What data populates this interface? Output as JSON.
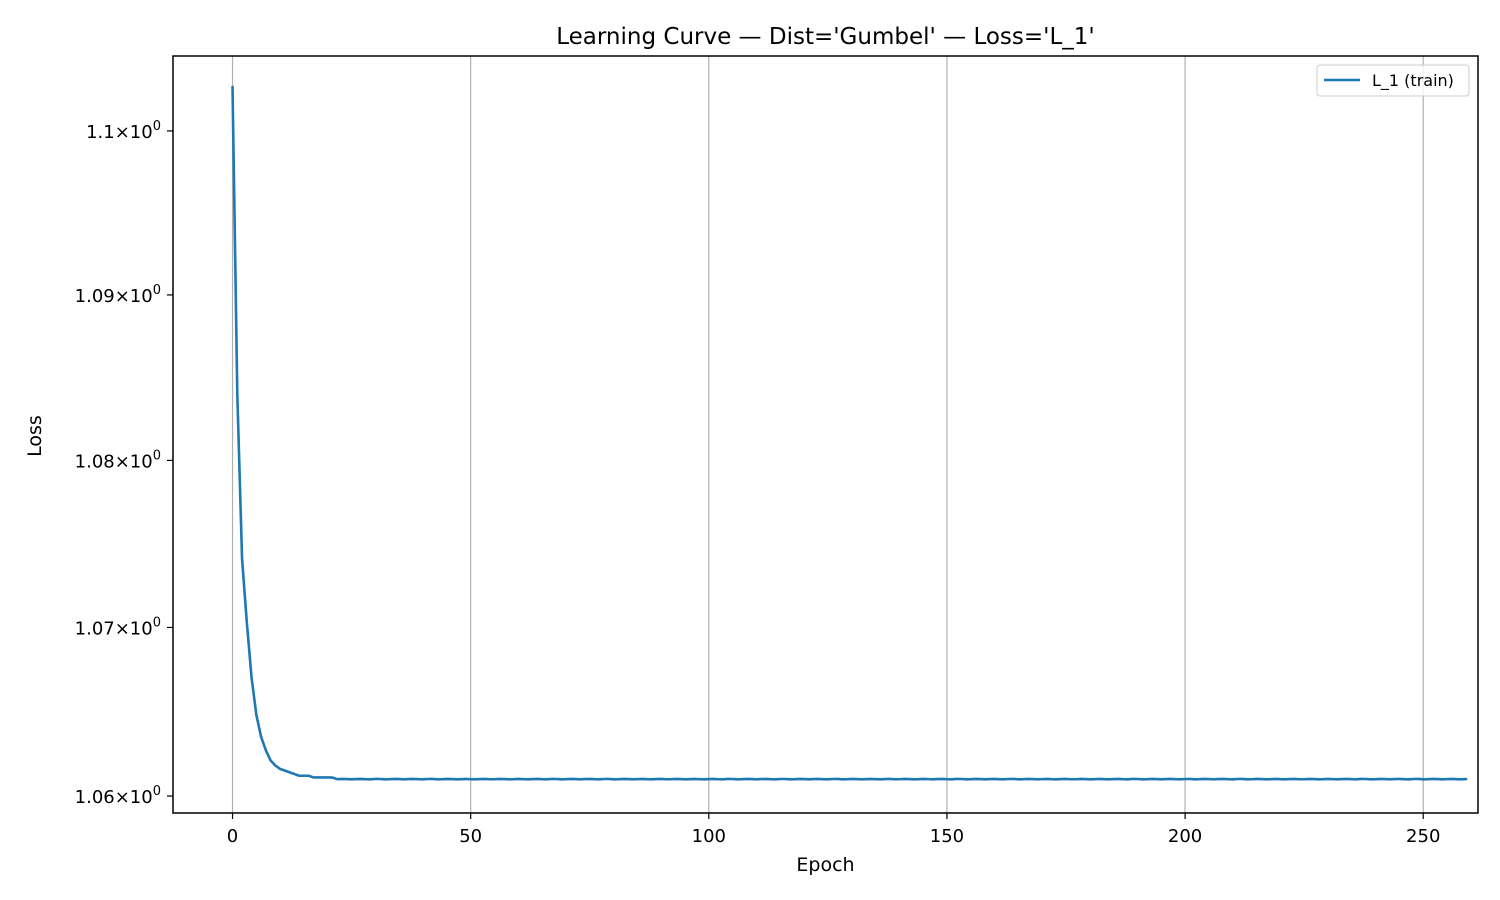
{
  "chart_data": {
    "type": "line",
    "title": "Learning Curve — Dist='Gumbel' — Loss='L_1'",
    "xlabel": "Epoch",
    "ylabel": "Loss",
    "xlim": [
      -12.5,
      261.5
    ],
    "ylim": [
      1.059,
      1.1046
    ],
    "y_scale": "log",
    "grid": "x-major",
    "legend_position": "upper right",
    "x_ticks": [
      0,
      50,
      100,
      150,
      200,
      250
    ],
    "x_tick_labels": [
      "0",
      "50",
      "100",
      "150",
      "200",
      "250"
    ],
    "y_ticks": [
      1.06,
      1.07,
      1.08,
      1.09,
      1.1
    ],
    "y_tick_mantissas": [
      "1.06",
      "1.07",
      "1.08",
      "1.09",
      "1.1"
    ],
    "y_tick_times": "×",
    "y_tick_base": "10",
    "y_tick_exponent": "0",
    "series": [
      {
        "name": "L_1 (train)",
        "color": "#1f77b4",
        "x_start": 0,
        "x_step": 1,
        "values": [
          1.1027,
          1.084,
          1.0741,
          1.0703,
          1.067,
          1.0648,
          1.0635,
          1.0627,
          1.0621,
          1.0618,
          1.0616,
          1.0615,
          1.0614,
          1.0613,
          1.0612,
          1.0612,
          1.0612,
          1.0611,
          1.0611,
          1.0611,
          1.0611,
          1.0611,
          1.061,
          1.061,
          1.061,
          1.061,
          1.061,
          1.061,
          1.061,
          1.061,
          1.061,
          1.061,
          1.061,
          1.061,
          1.061,
          1.061,
          1.061,
          1.061,
          1.061,
          1.061,
          1.061,
          1.061,
          1.061,
          1.061,
          1.061,
          1.061,
          1.061,
          1.061,
          1.061,
          1.061,
          1.061,
          1.061,
          1.061,
          1.061,
          1.061,
          1.061,
          1.061,
          1.061,
          1.061,
          1.061,
          1.061,
          1.061,
          1.061,
          1.061,
          1.061,
          1.061,
          1.061,
          1.061,
          1.061,
          1.061,
          1.061,
          1.061,
          1.061,
          1.061,
          1.061,
          1.061,
          1.061,
          1.061,
          1.061,
          1.061,
          1.061,
          1.061,
          1.061,
          1.061,
          1.061,
          1.061,
          1.061,
          1.061,
          1.061,
          1.061,
          1.061,
          1.061,
          1.061,
          1.061,
          1.061,
          1.061,
          1.061,
          1.061,
          1.061,
          1.061,
          1.061,
          1.061,
          1.061,
          1.061,
          1.061,
          1.061,
          1.061,
          1.061,
          1.061,
          1.061,
          1.061,
          1.061,
          1.061,
          1.061,
          1.061,
          1.061,
          1.061,
          1.061,
          1.061,
          1.061,
          1.061,
          1.061,
          1.061,
          1.061,
          1.061,
          1.061,
          1.061,
          1.061,
          1.061,
          1.061,
          1.061,
          1.061,
          1.061,
          1.061,
          1.061,
          1.061,
          1.061,
          1.061,
          1.061,
          1.061,
          1.061,
          1.061,
          1.061,
          1.061,
          1.061,
          1.061,
          1.061,
          1.061,
          1.061,
          1.061,
          1.061,
          1.061,
          1.061,
          1.061,
          1.061,
          1.061,
          1.061,
          1.061,
          1.061,
          1.061,
          1.061,
          1.061,
          1.061,
          1.061,
          1.061,
          1.061,
          1.061,
          1.061,
          1.061,
          1.061,
          1.061,
          1.061,
          1.061,
          1.061,
          1.061,
          1.061,
          1.061,
          1.061,
          1.061,
          1.061,
          1.061,
          1.061,
          1.061,
          1.061,
          1.061,
          1.061,
          1.061,
          1.061,
          1.061,
          1.061,
          1.061,
          1.061,
          1.061,
          1.061,
          1.061,
          1.061,
          1.061,
          1.061,
          1.061,
          1.061,
          1.061,
          1.061,
          1.061,
          1.061,
          1.061,
          1.061,
          1.061,
          1.061,
          1.061,
          1.061,
          1.061,
          1.061,
          1.061,
          1.061,
          1.061,
          1.061,
          1.061,
          1.061,
          1.061,
          1.061,
          1.061,
          1.061,
          1.061,
          1.061,
          1.061,
          1.061,
          1.061,
          1.061,
          1.061,
          1.061,
          1.061,
          1.061,
          1.061,
          1.061,
          1.061,
          1.061,
          1.061,
          1.061,
          1.061,
          1.061,
          1.061,
          1.061,
          1.061,
          1.061,
          1.061,
          1.061,
          1.061,
          1.061,
          1.061,
          1.061,
          1.061,
          1.061,
          1.061,
          1.061,
          1.061,
          1.061,
          1.061,
          1.061,
          1.061,
          1.061
        ]
      }
    ]
  }
}
